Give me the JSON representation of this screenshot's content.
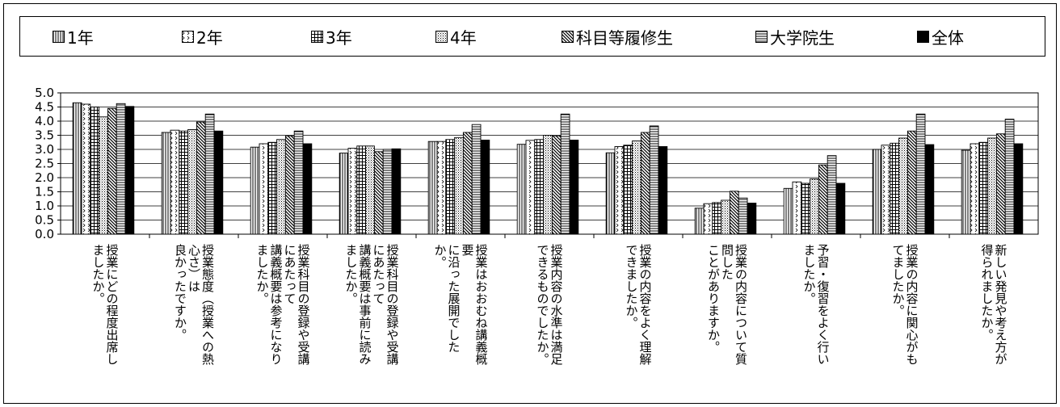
{
  "chart_data": {
    "type": "bar",
    "legend_position": "top",
    "grid": true,
    "ylim": [
      0.0,
      5.0
    ],
    "yticks": [
      "5.0",
      "4.5",
      "4.0",
      "3.5",
      "3.0",
      "2.5",
      "2.0",
      "1.5",
      "1.0",
      "0.5",
      "0.0"
    ],
    "categories": [
      [
        "授業にどの程度出席し",
        "ましたか。"
      ],
      [
        "授業態度（授業への熱",
        "心さ）は",
        "良かったですか。"
      ],
      [
        "授業科目の登録や受講",
        "にあたって",
        "講義概要は参考になり",
        "ましたか。"
      ],
      [
        "授業科目の登録や受講",
        "にあたって",
        "講義概要は事前に読み",
        "ましたか。"
      ],
      [
        "授業はおおむね講義概",
        "要",
        "に沿った展開でした",
        "か。"
      ],
      [
        "授業内容の水準は満足",
        "できるものでしたか。"
      ],
      [
        "授業の内容をよく理解",
        "できましたか。"
      ],
      [
        "授業の内容について質",
        "問した",
        "ことがありますか。"
      ],
      [
        "予習・復習をよく行い",
        "ましたか。"
      ],
      [
        "授業の内容に関心がも",
        "てましたか。"
      ],
      [
        "新しい発見や考え方が",
        "得られましたか。"
      ]
    ],
    "series": [
      {
        "name": "1年",
        "pattern": "vlines",
        "values": [
          4.65,
          3.6,
          3.08,
          2.87,
          3.28,
          3.18,
          2.88,
          0.92,
          1.62,
          3.0,
          2.97
        ]
      },
      {
        "name": "2年",
        "pattern": "dots",
        "values": [
          4.6,
          3.68,
          3.2,
          3.04,
          3.28,
          3.32,
          3.1,
          1.08,
          1.85,
          3.15,
          3.2
        ]
      },
      {
        "name": "3年",
        "pattern": "grid",
        "values": [
          4.5,
          3.65,
          3.25,
          3.12,
          3.35,
          3.35,
          3.15,
          1.12,
          1.8,
          3.22,
          3.25
        ]
      },
      {
        "name": "4年",
        "pattern": "fine",
        "values": [
          4.15,
          3.7,
          3.35,
          3.12,
          3.42,
          3.5,
          3.3,
          1.2,
          1.95,
          3.4,
          3.4
        ]
      },
      {
        "name": "科目等履修生",
        "pattern": "diag",
        "values": [
          4.45,
          3.97,
          3.48,
          2.92,
          3.6,
          3.48,
          3.6,
          1.52,
          2.45,
          3.65,
          3.55
        ]
      },
      {
        "name": "大学院生",
        "pattern": "hlines",
        "values": [
          4.62,
          4.25,
          3.65,
          3.0,
          3.88,
          4.25,
          3.83,
          1.28,
          2.78,
          4.25,
          4.07
        ]
      },
      {
        "name": "全体",
        "pattern": "solid",
        "values": [
          4.52,
          3.65,
          3.2,
          3.02,
          3.33,
          3.33,
          3.1,
          1.1,
          1.8,
          3.17,
          3.2
        ]
      }
    ]
  }
}
